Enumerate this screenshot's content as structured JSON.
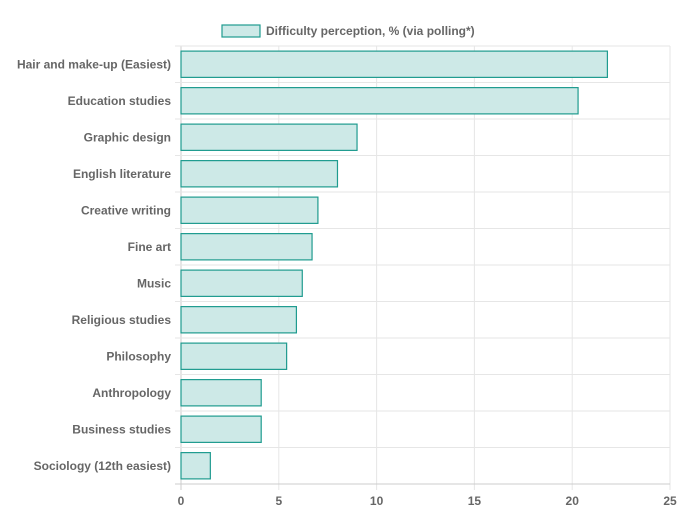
{
  "chart_data": {
    "type": "bar",
    "orientation": "horizontal",
    "categories": [
      "Hair and make-up (Easiest)",
      "Education studies",
      "Graphic design",
      "English literature",
      "Creative writing",
      "Fine art",
      "Music",
      "Religious studies",
      "Philosophy",
      "Anthropology",
      "Business studies",
      "Sociology (12th easiest)"
    ],
    "series": [
      {
        "name": "Difficulty perception, % (via polling*)",
        "values": [
          21.8,
          20.3,
          9.0,
          8.0,
          7.0,
          6.7,
          6.2,
          5.9,
          5.4,
          4.1,
          4.1,
          1.5
        ]
      }
    ],
    "xlim": [
      0,
      25
    ],
    "xticks": [
      0,
      5,
      10,
      15,
      20,
      25
    ],
    "grid": true,
    "legend_position": "top"
  },
  "colors": {
    "bar_fill": "#cde9e7",
    "bar_stroke": "#1f9b8f",
    "grid": "#e6e6e6",
    "text": "#666666"
  }
}
